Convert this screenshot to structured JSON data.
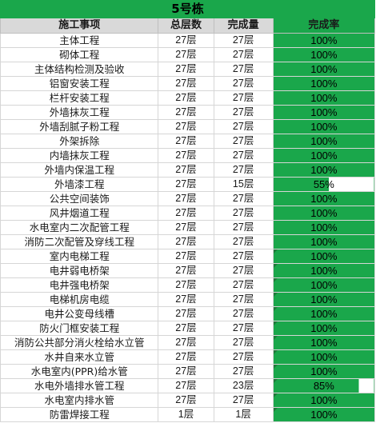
{
  "title": "5号栋",
  "headers": {
    "item": "施工事项",
    "total": "总层数",
    "done": "完成量",
    "rate": "完成率"
  },
  "rows": [
    {
      "item": "主体工程",
      "total": "27层",
      "done": "27层",
      "rate": "100%",
      "fill": 1.0
    },
    {
      "item": "砌体工程",
      "total": "27层",
      "done": "27层",
      "rate": "100%",
      "fill": 1.0
    },
    {
      "item": "主体结构检测及验收",
      "total": "27层",
      "done": "27层",
      "rate": "100%",
      "fill": 1.0
    },
    {
      "item": "铝窗安装工程",
      "total": "27层",
      "done": "27层",
      "rate": "100%",
      "fill": 1.0
    },
    {
      "item": "栏杆安装工程",
      "total": "27层",
      "done": "27层",
      "rate": "100%",
      "fill": 1.0
    },
    {
      "item": "外墙抹灰工程",
      "total": "27层",
      "done": "27层",
      "rate": "100%",
      "fill": 1.0
    },
    {
      "item": "外墙刮腻子粉工程",
      "total": "27层",
      "done": "27层",
      "rate": "100%",
      "fill": 1.0
    },
    {
      "item": "外架拆除",
      "total": "27层",
      "done": "27层",
      "rate": "100%",
      "fill": 1.0
    },
    {
      "item": "内墙抹灰工程",
      "total": "27层",
      "done": "27层",
      "rate": "100%",
      "fill": 1.0
    },
    {
      "item": "外墙内保温工程",
      "total": "27层",
      "done": "27层",
      "rate": "100%",
      "fill": 1.0
    },
    {
      "item": "外墙漆工程",
      "total": "27层",
      "done": "15层",
      "rate": "55%",
      "fill": 0.55
    },
    {
      "item": "公共空间装饰",
      "total": "27层",
      "done": "27层",
      "rate": "100%",
      "fill": 1.0
    },
    {
      "item": "风井烟道工程",
      "total": "27层",
      "done": "27层",
      "rate": "100%",
      "fill": 1.0
    },
    {
      "item": "水电室内二次配管工程",
      "total": "27层",
      "done": "27层",
      "rate": "100%",
      "fill": 1.0
    },
    {
      "item": "消防二次配管及穿线工程",
      "total": "27层",
      "done": "27层",
      "rate": "100%",
      "fill": 1.0
    },
    {
      "item": "室内电梯工程",
      "total": "27层",
      "done": "27层",
      "rate": "100%",
      "fill": 1.0,
      "flag": true
    },
    {
      "item": "电井弱电桥架",
      "total": "27层",
      "done": "27层",
      "rate": "100%",
      "fill": 1.0,
      "flag": true
    },
    {
      "item": "电井强电桥架",
      "total": "27层",
      "done": "27层",
      "rate": "100%",
      "fill": 1.0,
      "flag": true
    },
    {
      "item": "电梯机房电缆",
      "total": "27层",
      "done": "27层",
      "rate": "100%",
      "fill": 1.0,
      "flag": true
    },
    {
      "item": "电井公变母线槽",
      "total": "27层",
      "done": "27层",
      "rate": "100%",
      "fill": 1.0,
      "flag": true
    },
    {
      "item": "防火门框安装工程",
      "total": "27层",
      "done": "27层",
      "rate": "100%",
      "fill": 1.0,
      "flag": true
    },
    {
      "item": "消防公共部分消火栓给水立管",
      "total": "27层",
      "done": "27层",
      "rate": "100%",
      "fill": 1.0,
      "flag": true
    },
    {
      "item": "水井自来水立管",
      "total": "27层",
      "done": "27层",
      "rate": "100%",
      "fill": 1.0,
      "flag": true
    },
    {
      "item": "水电室内(PPR)给水管",
      "total": "27层",
      "done": "27层",
      "rate": "100%",
      "fill": 1.0,
      "flag": true
    },
    {
      "item": "水电外墙排水管工程",
      "total": "27层",
      "done": "23层",
      "rate": "85%",
      "fill": 0.85,
      "flag": true
    },
    {
      "item": "水电室内排水管",
      "total": "27层",
      "done": "27层",
      "rate": "100%",
      "fill": 1.0,
      "flag": true
    },
    {
      "item": "防雷焊接工程",
      "total": "1层",
      "done": "1层",
      "rate": "100%",
      "fill": 1.0,
      "flag": true
    }
  ]
}
